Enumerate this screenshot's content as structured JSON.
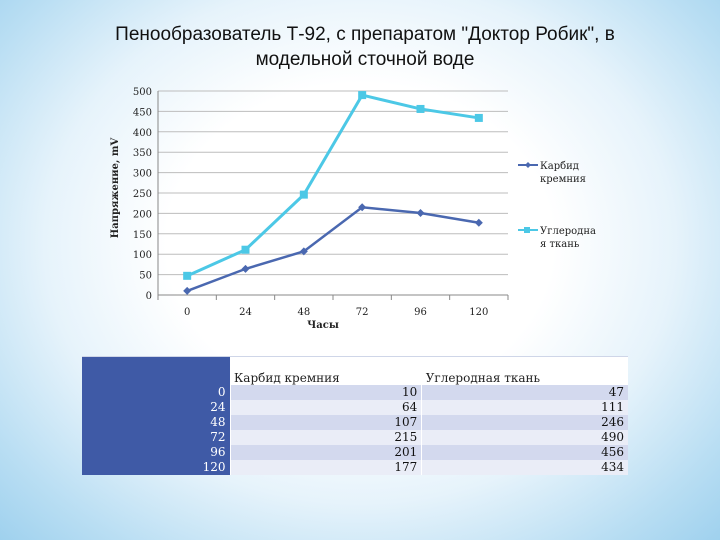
{
  "title_line1": "Пенообразователь Т-92, с препаратом \"Доктор Робик\", в",
  "title_line2": "модельной сточной воде",
  "chart_data": {
    "type": "line",
    "title": "Пенообразователь Т-92, с препаратом \"Доктор Робик\", в модельной сточной воде",
    "xlabel": "Часы",
    "ylabel": "Напряжение, mV",
    "categories": [
      "0",
      "24",
      "48",
      "72",
      "96",
      "120"
    ],
    "ylim": [
      0,
      500
    ],
    "yticks": [
      0,
      50,
      100,
      150,
      200,
      250,
      300,
      350,
      400,
      450,
      500
    ],
    "grid": true,
    "legend_position": "right",
    "series": [
      {
        "name": "Карбид кремния",
        "values": [
          10,
          64,
          107,
          215,
          201,
          177
        ],
        "color": "#4a68b0",
        "marker": "diamond"
      },
      {
        "name": "Углеродная ткань",
        "values": [
          47,
          111,
          246,
          490,
          456,
          434
        ],
        "color": "#4cc8e6",
        "marker": "square"
      }
    ],
    "legend_labels": [
      [
        "Карбид",
        "кремния"
      ],
      [
        "Углеродна",
        "я ткань"
      ]
    ]
  },
  "table": {
    "headers": [
      "Карбид кремния",
      "Углеродная ткань"
    ],
    "rows": [
      {
        "label": "0",
        "c1": "10",
        "c2": "47"
      },
      {
        "label": "24",
        "c1": "64",
        "c2": "111"
      },
      {
        "label": "48",
        "c1": "107",
        "c2": "246"
      },
      {
        "label": "72",
        "c1": "215",
        "c2": "490"
      },
      {
        "label": "96",
        "c1": "201",
        "c2": "456"
      },
      {
        "label": "120",
        "c1": "177",
        "c2": "434"
      }
    ]
  }
}
